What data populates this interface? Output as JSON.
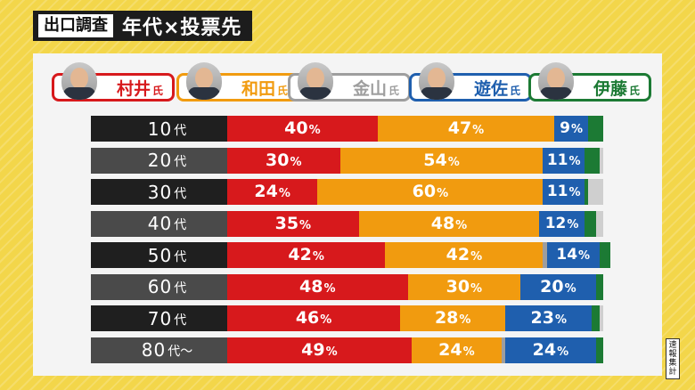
{
  "header": {
    "badge": "出口調査",
    "title": "年代×投票先"
  },
  "note": "速報集計",
  "candidates": [
    {
      "name": "村井",
      "suffix": "氏",
      "color": "#d7191c"
    },
    {
      "name": "和田",
      "suffix": "氏",
      "color": "#f19b0f"
    },
    {
      "name": "金山",
      "suffix": "氏",
      "color": "#9e9e9e"
    },
    {
      "name": "遊佐",
      "suffix": "氏",
      "color": "#1f5fae"
    },
    {
      "name": "伊藤",
      "suffix": "氏",
      "color": "#1c7a34"
    }
  ],
  "chart_data": {
    "type": "bar",
    "stacked": true,
    "orientation": "horizontal",
    "categories": [
      "10代",
      "20代",
      "30代",
      "40代",
      "50代",
      "60代",
      "70代",
      "80代～"
    ],
    "series": [
      {
        "name": "村井氏",
        "values": [
          40,
          30,
          24,
          35,
          42,
          48,
          46,
          49
        ]
      },
      {
        "name": "和田氏",
        "values": [
          47,
          54,
          60,
          48,
          42,
          30,
          28,
          24
        ]
      },
      {
        "name": "金山氏",
        "values": [
          0,
          0,
          0,
          0,
          1,
          0,
          0,
          1
        ]
      },
      {
        "name": "遊佐氏",
        "values": [
          9,
          11,
          11,
          12,
          14,
          20,
          23,
          24
        ]
      },
      {
        "name": "伊藤氏",
        "values": [
          4,
          4,
          1,
          3,
          3,
          2,
          2,
          2
        ]
      }
    ],
    "labeled_series": [
      "村井氏",
      "和田氏",
      "遊佐氏"
    ],
    "value_suffix": "%",
    "xlim": [
      0,
      100
    ]
  }
}
